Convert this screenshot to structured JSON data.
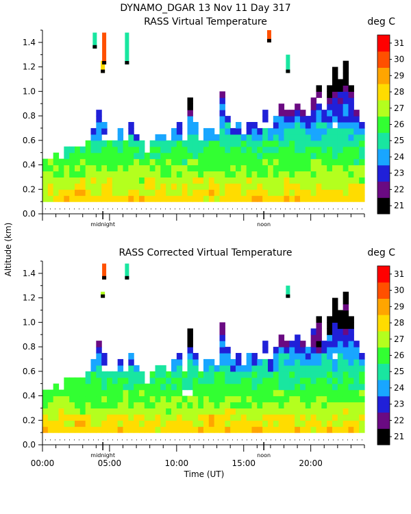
{
  "header": {
    "title": "DYNAMO_DGAR  13 Nov 11 Day 317"
  },
  "colorbar": {
    "unit": "deg C",
    "levels": [
      21,
      22,
      23,
      24,
      25,
      26,
      27,
      28,
      29,
      30,
      31
    ],
    "colors": [
      "#000000",
      "#6a0a82",
      "#2020d8",
      "#19a6ff",
      "#19e6a0",
      "#32ff32",
      "#b4ff1e",
      "#ffdc00",
      "#ffa500",
      "#ff5000",
      "#ff0000"
    ]
  },
  "chart_data": [
    {
      "type": "heatmap",
      "title": "RASS Virtual Temperature",
      "unit": "deg C",
      "xlabel": "",
      "ylabel": "Altitude (km)",
      "xlim": [
        0,
        24
      ],
      "ylim": [
        0,
        1.5
      ],
      "yticks": [
        0.0,
        0.2,
        0.4,
        0.6,
        0.8,
        1.0,
        1.2,
        1.4
      ],
      "markers": [
        {
          "x": 4.5,
          "label": "midnight"
        },
        {
          "x": 16.5,
          "label": "noon"
        }
      ],
      "tops": [
        0.45,
        0.45,
        0.5,
        0.45,
        0.55,
        0.55,
        0.55,
        0.55,
        0.6,
        0.7,
        0.85,
        0.75,
        0.65,
        0.6,
        0.7,
        0.6,
        0.75,
        0.65,
        0.6,
        0.5,
        0.6,
        0.65,
        0.65,
        0.6,
        0.7,
        0.75,
        0.6,
        0.95,
        0.75,
        0.6,
        0.7,
        0.7,
        0.65,
        1.0,
        0.85,
        0.7,
        0.75,
        0.65,
        0.75,
        0.75,
        0.7,
        0.85,
        0.7,
        0.8,
        0.9,
        0.85,
        0.85,
        0.9,
        0.85,
        0.8,
        0.95,
        1.05,
        0.85,
        1.05,
        1.2,
        1.1,
        1.25,
        1.05,
        0.85,
        0.75
      ],
      "warm_spots": [
        [
          2.8,
          0.17
        ],
        [
          3.0,
          0.2
        ],
        [
          12.5,
          0.2
        ],
        [
          16.0,
          0.13
        ]
      ],
      "cold_spots": [
        [
          11.0,
          0.9
        ],
        [
          21.4,
          1.0
        ],
        [
          22.0,
          1.12
        ],
        [
          22.4,
          1.1
        ]
      ],
      "holes": [
        [
          4.7,
          0.62
        ],
        [
          19.3,
          0.9
        ],
        [
          20.8,
          0.92
        ],
        [
          16.4,
          0.72
        ],
        [
          13.9,
          0.82
        ],
        [
          21.9,
          0.72
        ]
      ],
      "fragments": [
        {
          "x": 3.9,
          "y0": 1.35,
          "y1": 1.48,
          "value": 25
        },
        {
          "x": 4.5,
          "y0": 1.15,
          "y1": 1.25,
          "value": 28
        },
        {
          "x": 4.6,
          "y0": 1.22,
          "y1": 1.48,
          "value": 30
        },
        {
          "x": 6.3,
          "y0": 1.22,
          "y1": 1.48,
          "value": 25
        },
        {
          "x": 16.9,
          "y0": 1.4,
          "y1": 1.5,
          "value": 30
        },
        {
          "x": 18.3,
          "y0": 1.15,
          "y1": 1.3,
          "value": 25
        }
      ]
    },
    {
      "type": "heatmap",
      "title": "RASS Corrected Virtual Temperature",
      "unit": "deg C",
      "xlabel": "Time (UT)",
      "ylabel": "Altitude (km)",
      "xlim": [
        0,
        24
      ],
      "ylim": [
        0,
        1.5
      ],
      "yticks": [
        0.0,
        0.2,
        0.4,
        0.6,
        0.8,
        1.0,
        1.2,
        1.4
      ],
      "xticks": [
        0,
        5,
        10,
        15,
        20
      ],
      "xtick_labels": [
        "00:00",
        "05:00",
        "10:00",
        "15:00",
        "20:00"
      ],
      "markers": [
        {
          "x": 4.5,
          "label": "midnight"
        },
        {
          "x": 16.5,
          "label": "noon"
        }
      ],
      "tops": [
        0.45,
        0.45,
        0.5,
        0.45,
        0.55,
        0.55,
        0.55,
        0.55,
        0.6,
        0.7,
        0.85,
        0.75,
        0.65,
        0.6,
        0.7,
        0.6,
        0.75,
        0.65,
        0.6,
        0.5,
        0.6,
        0.65,
        0.65,
        0.6,
        0.7,
        0.75,
        0.6,
        0.95,
        0.75,
        0.6,
        0.7,
        0.7,
        0.65,
        1.0,
        0.85,
        0.7,
        0.75,
        0.65,
        0.75,
        0.75,
        0.7,
        0.85,
        0.7,
        0.8,
        0.9,
        0.85,
        0.85,
        0.9,
        0.85,
        0.8,
        0.95,
        1.05,
        0.85,
        1.05,
        1.2,
        1.1,
        1.25,
        1.05,
        0.85,
        0.75
      ],
      "warm_spots": [
        [
          2.8,
          0.17
        ],
        [
          3.0,
          0.2
        ],
        [
          12.5,
          0.2
        ],
        [
          16.0,
          0.13
        ]
      ],
      "cold_spots": [
        [
          10.9,
          0.85
        ],
        [
          19.6,
          0.95
        ],
        [
          20.5,
          0.82
        ],
        [
          21.4,
          1.0
        ],
        [
          22.0,
          1.1
        ],
        [
          22.5,
          1.0
        ]
      ],
      "holes": [
        [
          4.7,
          0.62
        ],
        [
          10.9,
          0.42
        ],
        [
          19.3,
          0.9
        ],
        [
          16.4,
          0.72
        ],
        [
          13.9,
          0.82
        ],
        [
          21.9,
          0.72
        ]
      ],
      "fragments": [
        {
          "x": 4.5,
          "y0": 1.2,
          "y1": 1.25,
          "value": 27
        },
        {
          "x": 4.6,
          "y0": 1.35,
          "y1": 1.48,
          "value": 30
        },
        {
          "x": 6.3,
          "y0": 1.35,
          "y1": 1.48,
          "value": 25
        },
        {
          "x": 18.3,
          "y0": 1.2,
          "y1": 1.3,
          "value": 25
        }
      ]
    }
  ]
}
